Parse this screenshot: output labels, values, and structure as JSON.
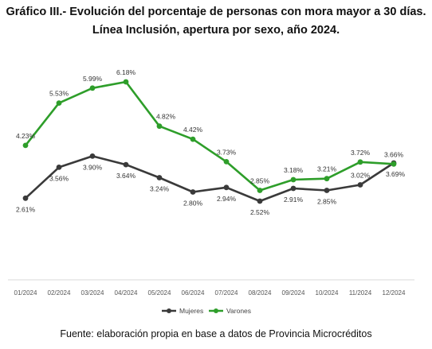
{
  "title_line1": "Gráfico III.- Evolución del porcentaje de personas con mora mayor a 30 días.",
  "title_line2": "Línea Inclusión, apertura por sexo, año 2024.",
  "source": "Fuente: elaboración propia en base a datos de Provincia Microcréditos",
  "colors": {
    "mujeres": "#3a3a3a",
    "varones": "#2e9e2a"
  },
  "chart_data": {
    "type": "line",
    "title": "Gráfico III.- Evolución del porcentaje de personas con mora mayor a 30 días. Línea Inclusión, apertura por sexo, año 2024.",
    "x": [
      "01/2024",
      "02/2024",
      "03/2024",
      "04/2024",
      "05/2024",
      "06/2024",
      "07/2024",
      "08/2024",
      "09/2024",
      "10/2024",
      "11/2024",
      "12/2024"
    ],
    "series": [
      {
        "name": "Mujeres",
        "values": [
          2.61,
          3.56,
          3.9,
          3.64,
          3.24,
          2.8,
          2.94,
          2.52,
          2.91,
          2.85,
          3.02,
          3.69
        ],
        "labels": [
          "2.61%",
          "3.56%",
          "3.90%",
          "3.64%",
          "3.24%",
          "2.80%",
          "2.94%",
          "2.52%",
          "2.91%",
          "2.85%",
          "3.02%",
          "3.69%"
        ]
      },
      {
        "name": "Varones",
        "values": [
          4.23,
          5.53,
          5.99,
          6.18,
          4.82,
          4.42,
          3.73,
          2.85,
          3.18,
          3.21,
          3.72,
          3.66
        ],
        "labels": [
          "4.23%",
          "5.53%",
          "5.99%",
          "6.18%",
          "4.82%",
          "4.42%",
          "3.73%",
          "2.85%",
          "3.18%",
          "3.21%",
          "3.72%",
          "3.66%"
        ]
      }
    ],
    "xlabel": "",
    "ylabel": "",
    "ylim": [
      0,
      7
    ],
    "grid": false,
    "legend": "bottom"
  }
}
